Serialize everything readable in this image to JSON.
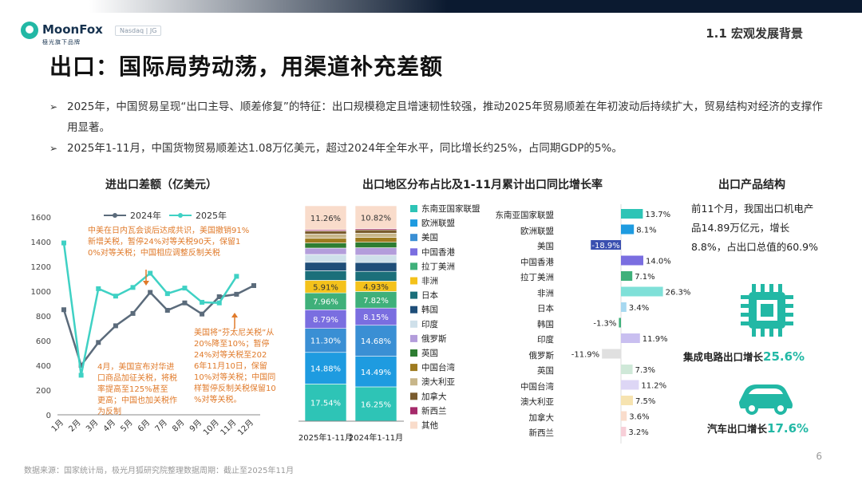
{
  "header": {
    "brand": "MoonFox",
    "brand_sub": "極光旗下品牌",
    "nasdaq": "Nasdaq | JG",
    "section": "1.1 宏观发展背景"
  },
  "title": "出口：国际局势动荡，用渠道补充差额",
  "bullets": [
    "2025年，中国贸易呈现“出口主导、顺差修复”的特征：出口规模稳定且增速韧性较强，推动2025年贸易顺差在年初波动后持续扩大，贸易结构对经济的支撑作用显著。",
    "2025年1-11月，中国货物贸易顺差达1.08万亿美元，超过2024年全年水平，同比增长约25%，占同期GDP的5%。"
  ],
  "bullet_arrow": "➢",
  "chart_titles": {
    "line": "进出口差额（亿美元）",
    "stack": "出口地区分布占比及1-11月累计出口同比增长率",
    "product": "出口产品结构"
  },
  "chart_data": [
    {
      "type": "line",
      "title": "进出口差额（亿美元）",
      "categories": [
        "1月",
        "2月",
        "3月",
        "4月",
        "5月",
        "6月",
        "7月",
        "8月",
        "9月",
        "10月",
        "11月",
        "12月"
      ],
      "ylim": [
        0,
        1600
      ],
      "yticks": [
        0,
        200,
        400,
        600,
        800,
        1000,
        1200,
        1400,
        1600
      ],
      "grid": false,
      "legend": "top",
      "series": [
        {
          "name": "2024年",
          "color": "#5b6b7b",
          "values": [
            850,
            400,
            585,
            720,
            820,
            990,
            845,
            905,
            815,
            955,
            975,
            1045
          ]
        },
        {
          "name": "2025年",
          "color": "#3fd1c4",
          "values": [
            1390,
            320,
            1020,
            960,
            1030,
            1145,
            980,
            1025,
            910,
            905,
            1120,
            null
          ]
        }
      ],
      "annotations": [
        "中美在日内瓦会谈后达成共识，美国撤销91%新增关税，暂停24%对等关税90天，保留10%对等关税；中国相应调整反制关税",
        "4月，美国宣布对华进口商品加征关税，将税率提高至125%甚至更高；中国也加关税作为反制",
        "美国将“芬太尼关税”从20%降至10%；暂停24%对等关税至2026年11月10日，保留10%对等关税；中国同样暂停反制关税保留10%对等关税。"
      ],
      "annotation_color": "#e07a2a"
    },
    {
      "type": "bar",
      "stacked": true,
      "title": "出口地区分布占比",
      "categories": [
        "2025年1-11月",
        "2024年1-11月"
      ],
      "series": [
        {
          "name": "东南亚国家联盟",
          "color": "#2ec4b6",
          "values": [
            17.54,
            16.25
          ]
        },
        {
          "name": "欧洲联盟",
          "color": "#1e9be0",
          "values": [
            14.88,
            14.49
          ]
        },
        {
          "name": "美国",
          "color": "#3a8fd4",
          "values": [
            11.3,
            14.68
          ]
        },
        {
          "name": "中国香港",
          "color": "#7a6ee0",
          "values": [
            8.79,
            8.15
          ]
        },
        {
          "name": "拉丁美洲",
          "color": "#3fb07a",
          "values": [
            7.96,
            7.82
          ]
        },
        {
          "name": "非洲",
          "color": "#f4c21b",
          "values": [
            5.91,
            4.93
          ]
        },
        {
          "name": "日本",
          "color": "#1b6f7a",
          "values": [
            4.5,
            4.6
          ]
        },
        {
          "name": "韩国",
          "color": "#1f4e79",
          "values": [
            4.0,
            4.2
          ]
        },
        {
          "name": "印度",
          "color": "#cfe0ea",
          "values": [
            3.7,
            3.5
          ]
        },
        {
          "name": "俄罗斯",
          "color": "#b39ddb",
          "values": [
            3.0,
            3.5
          ]
        },
        {
          "name": "英国",
          "color": "#2e7d32",
          "values": [
            2.4,
            2.6
          ]
        },
        {
          "name": "中国台湾",
          "color": "#9e7b1f",
          "values": [
            2.2,
            2.3
          ]
        },
        {
          "name": "澳大利亚",
          "color": "#c8b68a",
          "values": [
            2.0,
            2.0
          ]
        },
        {
          "name": "加拿大",
          "color": "#7a5c2e",
          "values": [
            1.5,
            1.6
          ]
        },
        {
          "name": "新西兰",
          "color": "#a52a6a",
          "values": [
            0.56,
            0.53
          ]
        },
        {
          "name": "其他",
          "color": "#f9dccb",
          "values": [
            11.26,
            10.82
          ]
        }
      ],
      "label_series": [
        "东南亚国家联盟",
        "欧洲联盟",
        "美国",
        "中国香港",
        "拉丁美洲",
        "非洲",
        "其他"
      ],
      "ylim": [
        0,
        100
      ]
    },
    {
      "type": "bar",
      "orientation": "horizontal",
      "title": "1-11月累计出口同比增长率",
      "categories": [
        "东南亚国家联盟",
        "欧洲联盟",
        "美国",
        "中国香港",
        "拉丁美洲",
        "非洲",
        "日本",
        "韩国",
        "印度",
        "俄罗斯",
        "英国",
        "中国台湾",
        "澳大利亚",
        "加拿大",
        "新西兰"
      ],
      "values": [
        13.7,
        8.1,
        -18.9,
        14.0,
        7.1,
        26.3,
        3.4,
        -1.3,
        11.9,
        -11.9,
        7.3,
        11.2,
        7.5,
        3.6,
        3.2
      ],
      "labels": [
        "13.7%",
        "8.1%",
        "-18.9%",
        "14.0%",
        "7.1%",
        "26.3%",
        "3.4%",
        "-1.3%",
        "11.9%",
        "-11.9%",
        "7.3%",
        "11.2%",
        "7.5%",
        "3.6%",
        "3.2%"
      ],
      "colors": [
        "#2ec4b6",
        "#1e9be0",
        "#3a4fb0",
        "#7a6ee0",
        "#3fb07a",
        "#7fe0d8",
        "#a7d8f0",
        "#3fb07a",
        "#c9bff0",
        "#e0e0e0",
        "#cfe8d8",
        "#ddd6f5",
        "#f6e3b0",
        "#f9dccb",
        "#f7cfd8"
      ],
      "xlim": [
        -20,
        30
      ],
      "unit": "%"
    }
  ],
  "product": {
    "text": "前11个月，我国出口机电产品14.89万亿元，增长8.8%，占出口总值的60.9%",
    "ic_label": "集成电路出口增长",
    "ic_pct": "25.6%",
    "car_label": "汽车出口增长",
    "car_pct": "17.6%",
    "accent": "#22b8a5"
  },
  "footer": "数据来源：国家统计局，极光月狐研究院整理数据周期：截止至2025年11月",
  "page_number": "6"
}
